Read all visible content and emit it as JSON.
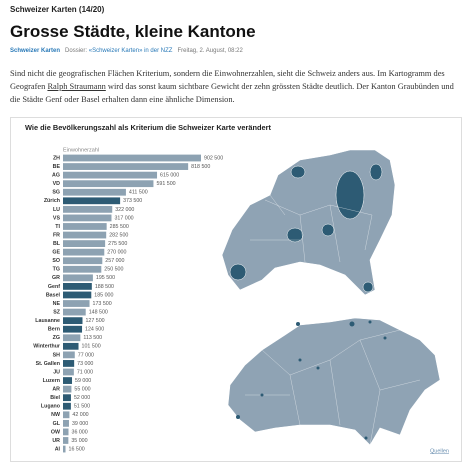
{
  "header": {
    "kicker": "Schweizer Karten (14/20)",
    "title": "Grosse Städte, kleine Kantone",
    "meta": {
      "section": "Schweizer Karten",
      "dossier_label": "Dossier:",
      "dossier_link": "«Schweizer Karten» in der NZZ",
      "date": "Freitag, 2. August, 08:22"
    }
  },
  "paragraph": {
    "before": "Sind nicht die geografischen Flächen Kriterium, sondern die Einwohnerzahlen, sieht die Schweiz anders aus. Im Kartogramm des Geografen",
    "link": "Ralph Straumann",
    "after": "wird das sonst kaum sichtbare Gewicht der zehn grössten Städte deutlich. Der Kanton Graubünden und die Städte Genf oder Basel erhalten dann eine ähnliche Dimension."
  },
  "chart_data": {
    "type": "bar",
    "orientation": "horizontal",
    "title": "Wie die Bevölkerungszahl als Kriterium die Schweizer Karte verändert",
    "value_axis_label": "Einwohnerzahl",
    "source_link": "Quellen",
    "categories": [
      "ZH",
      "BE",
      "AG",
      "VD",
      "SG",
      "Zürich",
      "LU",
      "VS",
      "TI",
      "FR",
      "BL",
      "GE",
      "SO",
      "TG",
      "GR",
      "Genf",
      "Basel",
      "NE",
      "SZ",
      "Lausanne",
      "Bern",
      "ZG",
      "Winterthur",
      "SH",
      "St. Gallen",
      "JU",
      "Luzern",
      "AR",
      "Biel",
      "Lugano",
      "NW",
      "GL",
      "OW",
      "UR",
      "AI"
    ],
    "values": [
      902500,
      818500,
      615000,
      591500,
      411500,
      373500,
      322000,
      317000,
      285500,
      282500,
      275500,
      270000,
      257000,
      250500,
      195500,
      188500,
      185000,
      173500,
      148500,
      127500,
      124500,
      113500,
      101500,
      77000,
      73000,
      71000,
      59000,
      55000,
      52000,
      51500,
      42000,
      39000,
      36000,
      35000,
      16500
    ],
    "value_labels": [
      "902 500",
      "818 500",
      "615 000",
      "591 500",
      "411 500",
      "373 500",
      "322 000",
      "317 000",
      "285 500",
      "282 500",
      "275 500",
      "270 000",
      "257 000",
      "250 500",
      "195 500",
      "188 500",
      "185 000",
      "173 500",
      "148 500",
      "127 500",
      "124 500",
      "113 500",
      "101 500",
      "77 000",
      "73 000",
      "71 000",
      "59 000",
      "55 000",
      "52 000",
      "51 500",
      "42 000",
      "39 000",
      "36 000",
      "35 000",
      "16 500"
    ],
    "colors": [
      "#8da2b2",
      "#8da2b2",
      "#8da2b2",
      "#8da2b2",
      "#8da2b2",
      "#2d5b74",
      "#8da2b2",
      "#8da2b2",
      "#8da2b2",
      "#8da2b2",
      "#8da2b2",
      "#8da2b2",
      "#8da2b2",
      "#8da2b2",
      "#8da2b2",
      "#2d5b74",
      "#2d5b74",
      "#8da2b2",
      "#8da2b2",
      "#2d5b74",
      "#2d5b74",
      "#8da2b2",
      "#2d5b74",
      "#8da2b2",
      "#2d5b74",
      "#8da2b2",
      "#2d5b74",
      "#8da2b2",
      "#2d5b74",
      "#2d5b74",
      "#8da2b2",
      "#8da2b2",
      "#8da2b2",
      "#8da2b2",
      "#8da2b2"
    ]
  }
}
